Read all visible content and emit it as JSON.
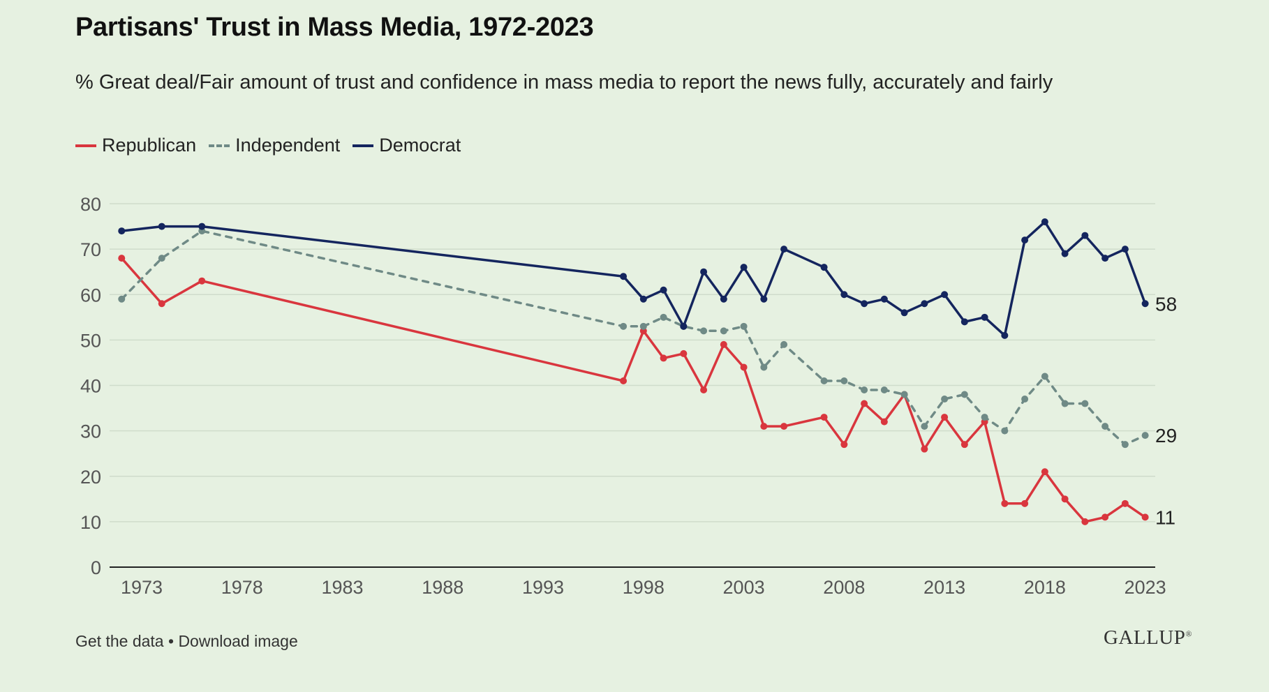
{
  "header": {
    "title": "Partisans' Trust in Mass Media, 1972-2023",
    "subtitle": "% Great deal/Fair amount of trust and confidence in mass media to report the news fully, accurately and fairly"
  },
  "footer": {
    "get_data": "Get the data",
    "separator": " • ",
    "download": "Download image",
    "logo": "GALLUP",
    "logo_mark": "®"
  },
  "colors": {
    "republican": "#d9363e",
    "independent": "#6f8a86",
    "democrat": "#14255e",
    "grid": "#cfdccb",
    "axis": "#222222",
    "tick_text": "#555555"
  },
  "chart_data": {
    "type": "line",
    "title": "Partisans' Trust in Mass Media, 1972-2023",
    "subtitle": "% Great deal/Fair amount of trust and confidence in mass media to report the news fully, accurately and fairly",
    "xlabel": "",
    "ylabel": "",
    "xlim": [
      1971.4,
      2023.5
    ],
    "ylim": [
      0,
      80
    ],
    "x_ticks": [
      1973,
      1978,
      1983,
      1988,
      1993,
      1998,
      2003,
      2008,
      2013,
      2018,
      2023
    ],
    "y_ticks": [
      0,
      10,
      20,
      30,
      40,
      50,
      60,
      70,
      80
    ],
    "grid": "horizontal",
    "legend": "top-left",
    "x": [
      1972,
      1974,
      1976,
      1997,
      1998,
      1999,
      2000,
      2001,
      2002,
      2003,
      2004,
      2005,
      2007,
      2008,
      2009,
      2010,
      2011,
      2012,
      2013,
      2014,
      2015,
      2016,
      2017,
      2018,
      2019,
      2020,
      2021,
      2022,
      2023
    ],
    "series": [
      {
        "name": "Republican",
        "style": "solid",
        "color": "#d9363e",
        "end_label": "11",
        "values": [
          68,
          58,
          63,
          41,
          52,
          46,
          47,
          39,
          49,
          44,
          31,
          31,
          33,
          27,
          36,
          32,
          38,
          26,
          33,
          27,
          32,
          14,
          14,
          21,
          15,
          10,
          11,
          14,
          11
        ]
      },
      {
        "name": "Independent",
        "style": "dashed",
        "color": "#6f8a86",
        "end_label": "29",
        "values": [
          59,
          68,
          74,
          53,
          53,
          55,
          53,
          52,
          52,
          53,
          44,
          49,
          41,
          41,
          39,
          39,
          38,
          31,
          37,
          38,
          33,
          30,
          37,
          42,
          36,
          36,
          31,
          27,
          29
        ]
      },
      {
        "name": "Democrat",
        "style": "solid",
        "color": "#14255e",
        "end_label": "58",
        "values": [
          74,
          75,
          75,
          64,
          59,
          61,
          53,
          65,
          59,
          66,
          59,
          70,
          66,
          60,
          58,
          59,
          56,
          58,
          60,
          54,
          55,
          51,
          72,
          76,
          69,
          73,
          68,
          70,
          58
        ]
      }
    ]
  }
}
